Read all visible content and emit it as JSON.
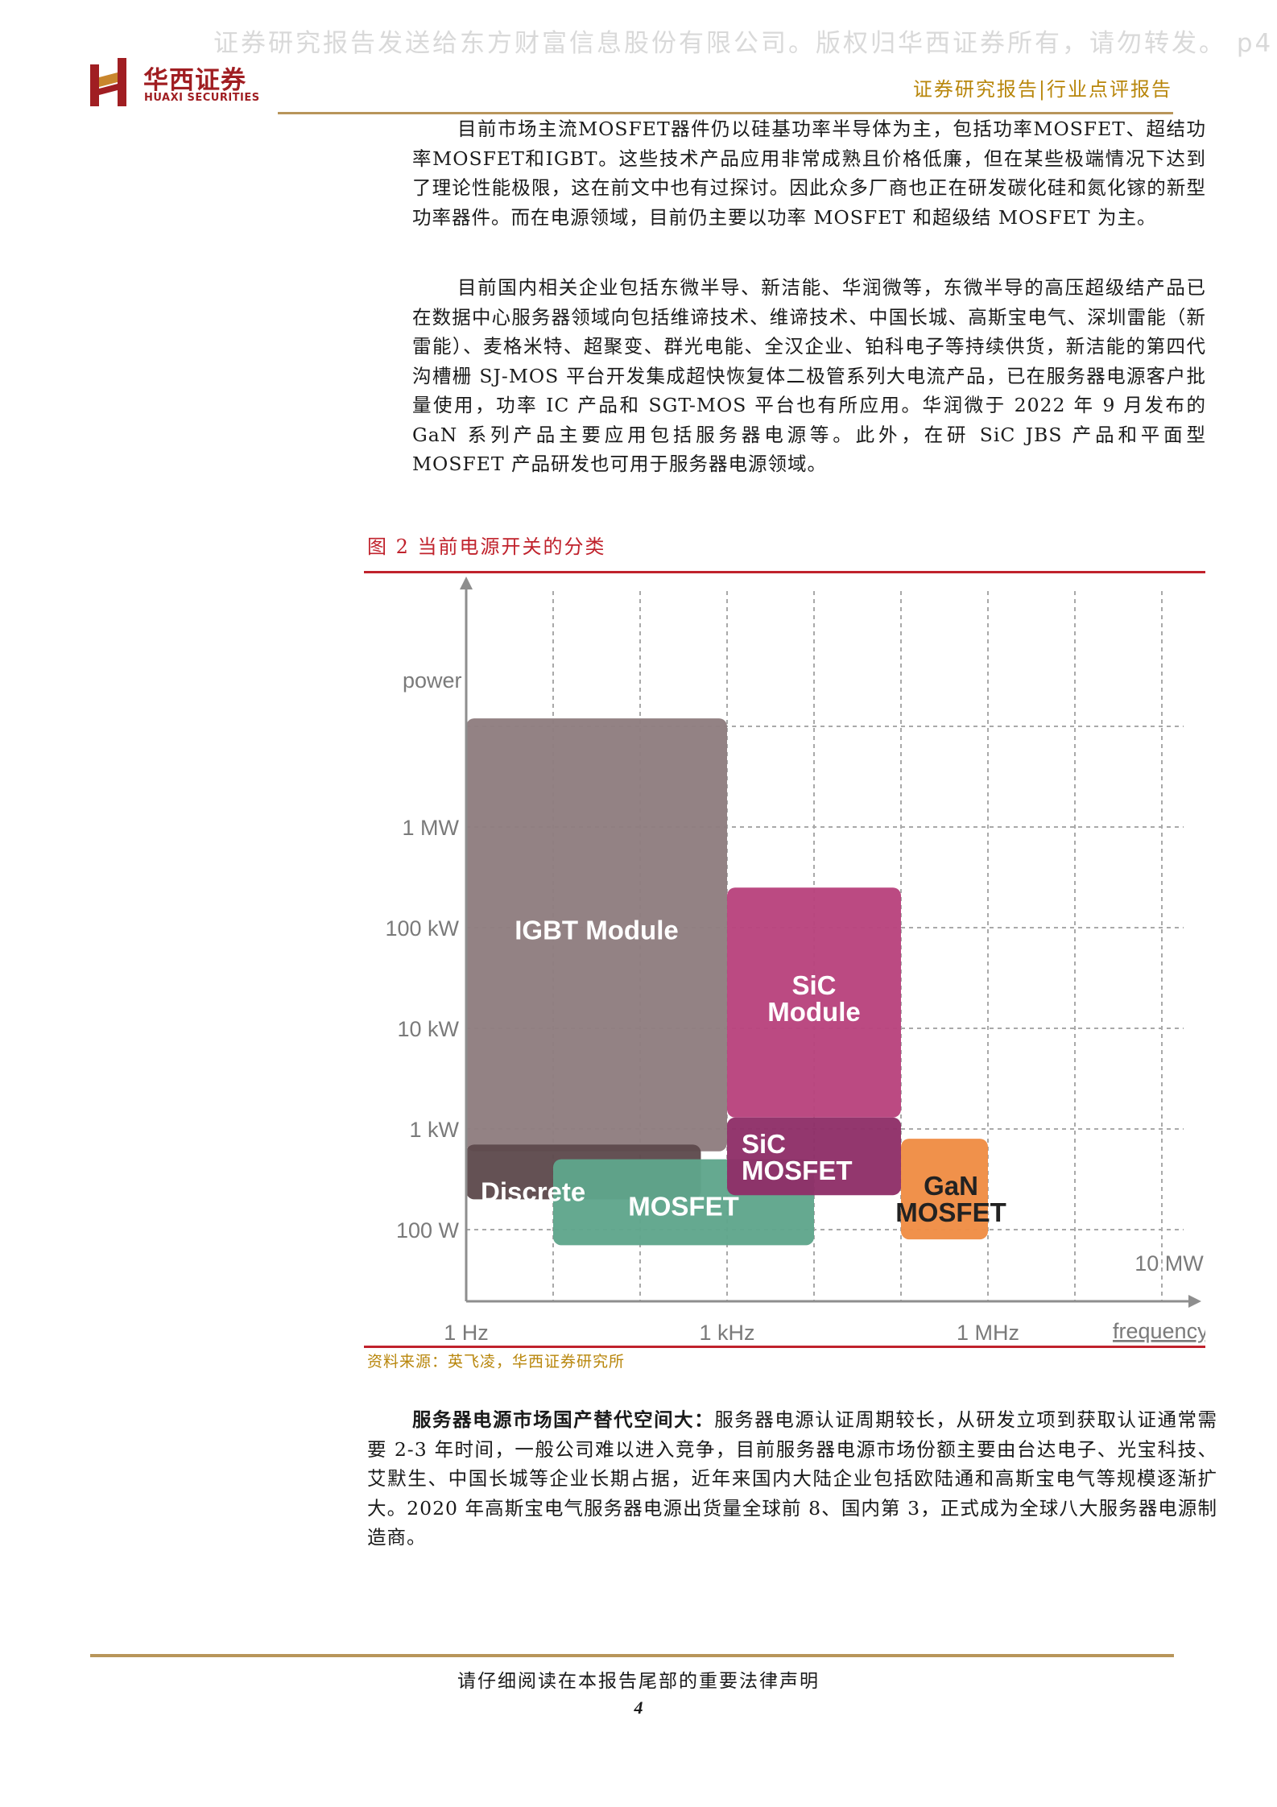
{
  "watermark": "证券研究报告发送给东方财富信息股份有限公司。版权归华西证券所有，请勿转发。 p4",
  "header": {
    "logo_cn": "华西证券",
    "logo_en": "HUAXI SECURITIES",
    "report_type": "证券研究报告|行业点评报告"
  },
  "body": {
    "p1": "目前市场主流MOSFET器件仍以硅基功率半导体为主，包括功率MOSFET、超结功率MOSFET和IGBT。这些技术产品应用非常成熟且价格低廉，但在某些极端情况下达到了理论性能极限，这在前文中也有过探讨。因此众多厂商也正在研发碳化硅和氮化镓的新型功率器件。而在电源领域，目前仍主要以功率 MOSFET 和超级结 MOSFET 为主。",
    "p2": "目前国内相关企业包括东微半导、新洁能、华润微等，东微半导的高压超级结产品已在数据中心服务器领域向包括维谛技术、维谛技术、中国长城、高斯宝电气、深圳雷能（新雷能）、麦格米特、超聚变、群光电能、全汉企业、铂科电子等持续供货，新洁能的第四代沟槽栅 SJ-MOS 平台开发集成超快恢复体二极管系列大电流产品，已在服务器电源客户批量使用，功率 IC 产品和 SGT-MOS 平台也有所应用。华润微于 2022 年 9 月发布的 GaN 系列产品主要应用包括服务器电源等。此外，在研 SiC JBS 产品和平面型 MOSFET 产品研发也可用于服务器电源领域。",
    "p3_lead": "服务器电源市场国产替代空间大：",
    "p3_rest": "服务器电源认证周期较长，从研发立项到获取认证通常需要 2-3 年时间，一般公司难以进入竞争，目前服务器电源市场份额主要由台达电子、光宝科技、艾默生、中国长城等企业长期占据，近年来国内大陆企业包括欧陆通和高斯宝电气等规模逐渐扩大。2020 年高斯宝电气服务器电源出货量全球前 8、国内第 3，正式成为全球八大服务器电源制造商。"
  },
  "figure": {
    "title": "图 2 当前电源开关的分类",
    "source": "资料来源：英飞凌，华西证券研究所"
  },
  "chart_data": {
    "type": "diagram",
    "ylabel": "power",
    "xlabel": "frequency",
    "y_ticks": [
      "1 MW",
      "100 kW",
      "10 kW",
      "1 kW",
      "100 W"
    ],
    "x_ticks": [
      "1 Hz",
      "1 kHz",
      "1 MHz"
    ],
    "y_range_W": [
      100,
      1000000
    ],
    "x_range_Hz": [
      1,
      1000000
    ],
    "annotations": [
      "10 MW"
    ],
    "regions": [
      {
        "label": "IGBT Module",
        "color": "#8f7d7f",
        "freq_Hz": [
          1,
          1000
        ],
        "power_W": [
          600,
          12000000
        ]
      },
      {
        "label": "Discrete\nIGBT",
        "color": "#5e4a4d",
        "freq_Hz": [
          1,
          500
        ],
        "power_W": [
          200,
          700
        ]
      },
      {
        "label": "MOSFET",
        "color": "#5fa58b",
        "freq_Hz": [
          10,
          10000
        ],
        "power_W": [
          70,
          500
        ]
      },
      {
        "label": "SiC\nModule",
        "color": "#b8437d",
        "freq_Hz": [
          1000,
          100000
        ],
        "power_W": [
          1300,
          250000
        ]
      },
      {
        "label": "SiC\nMOSFET",
        "color": "#8f2f68",
        "freq_Hz": [
          1000,
          100000
        ],
        "power_W": [
          220,
          1300
        ]
      },
      {
        "label": "GaN\nMOSFET",
        "color": "#ef8c44",
        "freq_Hz": [
          100000,
          1000000
        ],
        "power_W": [
          80,
          800
        ]
      }
    ],
    "colors": {
      "grid": "#a9a9a9",
      "axis": "#8e8e8e",
      "tick_text": "#7a7a7a",
      "region_text": "#ffffff",
      "gan_text": "#222222"
    }
  },
  "footer": {
    "note": "请仔细阅读在本报告尾部的重要法律声明",
    "page": "4"
  }
}
